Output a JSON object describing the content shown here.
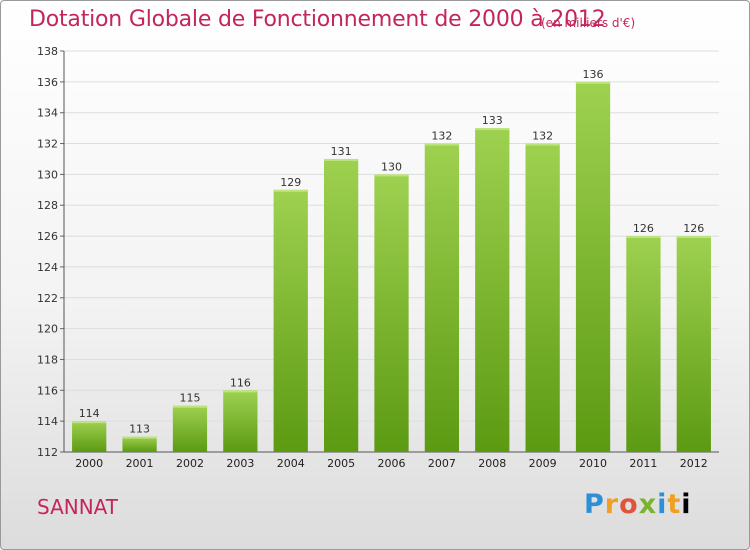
{
  "title": "Dotation Globale de Fonctionnement de 2000 à 2012",
  "subtitle": "(en milliers d'€)",
  "commune": "SANNAT",
  "logo": "Proxiti",
  "colors": {
    "bar_light": "#9ed150",
    "bar_dark": "#5c9a12",
    "title": "#c4265a"
  },
  "chart_data": {
    "type": "bar",
    "title": "Dotation Globale de Fonctionnement de 2000 à 2012",
    "subtitle": "(en milliers d'€)",
    "xlabel": "",
    "ylabel": "",
    "categories": [
      "2000",
      "2001",
      "2002",
      "2003",
      "2004",
      "2005",
      "2006",
      "2007",
      "2008",
      "2009",
      "2010",
      "2011",
      "2012"
    ],
    "values": [
      114,
      113,
      115,
      116,
      129,
      131,
      130,
      132,
      133,
      132,
      136,
      126,
      126
    ],
    "ylim": [
      112,
      138
    ],
    "yticks": [
      112,
      114,
      116,
      118,
      120,
      122,
      124,
      126,
      128,
      130,
      132,
      134,
      136,
      138
    ],
    "grid": true,
    "legend": "none"
  }
}
